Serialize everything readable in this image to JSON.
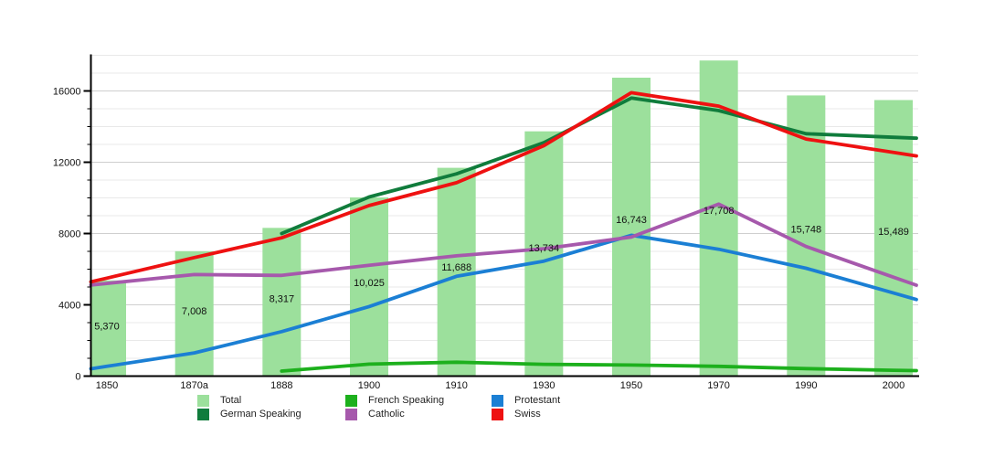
{
  "chart_data": {
    "type": "bar+line",
    "title": "",
    "categories": [
      "1850",
      "1870a",
      "1888",
      "1900",
      "1910",
      "1930",
      "1950",
      "1970",
      "1990",
      "2000"
    ],
    "bar_series": {
      "name": "Total",
      "color": "#9CE09C",
      "values": [
        5370,
        7008,
        8317,
        10025,
        11688,
        13734,
        16743,
        17708,
        15748,
        15489
      ],
      "labels": [
        "5,370",
        "7,008",
        "8,317",
        "10,025",
        "11,688",
        "13,734",
        "16,743",
        "17,708",
        "15,748",
        "15,489"
      ]
    },
    "line_series": [
      {
        "name": "German Speaking",
        "color": "#107C3C",
        "values": [
          null,
          null,
          8000,
          10050,
          11350,
          13100,
          15600,
          14900,
          13600,
          13400
        ]
      },
      {
        "name": "French Speaking",
        "color": "#1DB01D",
        "values": [
          null,
          null,
          280,
          670,
          780,
          660,
          620,
          550,
          420,
          330
        ]
      },
      {
        "name": "Protestant",
        "color": "#1B7FD4",
        "values": [
          550,
          1300,
          2500,
          3900,
          5600,
          6450,
          7900,
          7120,
          6050,
          4660
        ]
      },
      {
        "name": "Catholic",
        "color": "#A659AC",
        "values": [
          5200,
          5700,
          5650,
          6220,
          6750,
          7150,
          7800,
          9650,
          7270,
          5550
        ]
      },
      {
        "name": "Swiss",
        "color": "#EE1111",
        "values": [
          5500,
          6650,
          7760,
          9570,
          10850,
          12930,
          15900,
          15150,
          13300,
          12550
        ]
      }
    ],
    "y_axis": {
      "min": 0,
      "max": 18000,
      "major_interval": 4000,
      "minor_interval": 1000,
      "tick_labels": [
        "0",
        "4000",
        "8000",
        "12000",
        "16000"
      ]
    },
    "grid": "horizontal, minor + major",
    "legend_position": "bottom",
    "legend_columns": [
      [
        "Total",
        "German Speaking"
      ],
      [
        "French Speaking",
        "Catholic"
      ],
      [
        "Protestant",
        "Swiss"
      ]
    ]
  }
}
